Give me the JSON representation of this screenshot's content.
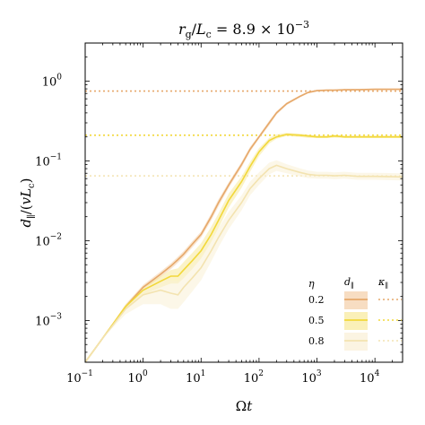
{
  "chart_data": {
    "type": "line",
    "title_parts": {
      "r": "r",
      "g": "g",
      "slash": "/",
      "L": "L",
      "c": "c",
      "eq": " = 8.9 × 10",
      "exp": "−3"
    },
    "xlabel_parts": {
      "omega": "Ω",
      "t": "t"
    },
    "ylabel_parts": {
      "d": "d",
      "par": "∥",
      "open": "/(",
      "v": "v",
      "L": "L",
      "c": "c",
      "close": ")"
    },
    "xscale": "log",
    "yscale": "log",
    "xlim": [
      0.1,
      30000
    ],
    "ylim": [
      0.0003,
      3
    ],
    "x_ticks": [
      {
        "value": 0.1,
        "base": "10",
        "exp": "−1"
      },
      {
        "value": 1,
        "base": "10",
        "exp": "0"
      },
      {
        "value": 10,
        "base": "10",
        "exp": "1"
      },
      {
        "value": 100,
        "base": "10",
        "exp": "2"
      },
      {
        "value": 1000,
        "base": "10",
        "exp": "3"
      },
      {
        "value": 10000,
        "base": "10",
        "exp": "4"
      }
    ],
    "y_ticks": [
      {
        "value": 0.001,
        "base": "10",
        "exp": "−3"
      },
      {
        "value": 0.01,
        "base": "10",
        "exp": "−2"
      },
      {
        "value": 0.1,
        "base": "10",
        "exp": "−1"
      },
      {
        "value": 1,
        "base": "10",
        "exp": "0"
      }
    ],
    "grid": false,
    "legend": {
      "placement": "bottom-right",
      "header_eta": "η",
      "header_d": "d",
      "header_d_sub": "∥",
      "header_kappa": "κ",
      "header_kappa_sub": "∥"
    },
    "series": [
      {
        "eta": "0.2",
        "color": "#e6a86a",
        "band_color": "#f4cfa8",
        "kappa": 0.75,
        "x": [
          0.1,
          0.2,
          0.5,
          1,
          2,
          3,
          4,
          5,
          7,
          10,
          15,
          20,
          30,
          50,
          70,
          100,
          150,
          200,
          300,
          500,
          700,
          1000,
          1500,
          2000,
          3000,
          5000,
          10000,
          30000
        ],
        "y": [
          0.0003,
          0.0006,
          0.0015,
          0.0026,
          0.0038,
          0.0048,
          0.0058,
          0.0068,
          0.009,
          0.012,
          0.02,
          0.03,
          0.05,
          0.09,
          0.14,
          0.2,
          0.3,
          0.4,
          0.52,
          0.64,
          0.72,
          0.76,
          0.77,
          0.77,
          0.78,
          0.78,
          0.79,
          0.79
        ],
        "lo": [
          0.0003,
          0.0006,
          0.0014,
          0.0024,
          0.0035,
          0.0044,
          0.0053,
          0.0062,
          0.0082,
          0.011,
          0.018,
          0.027,
          0.046,
          0.083,
          0.13,
          0.19,
          0.28,
          0.38,
          0.5,
          0.62,
          0.7,
          0.74,
          0.75,
          0.75,
          0.76,
          0.76,
          0.77,
          0.77
        ],
        "hi": [
          0.0003,
          0.0006,
          0.0016,
          0.0028,
          0.0041,
          0.0052,
          0.0063,
          0.0074,
          0.0098,
          0.013,
          0.022,
          0.033,
          0.054,
          0.097,
          0.15,
          0.21,
          0.32,
          0.42,
          0.54,
          0.66,
          0.74,
          0.78,
          0.79,
          0.79,
          0.8,
          0.8,
          0.81,
          0.81
        ]
      },
      {
        "eta": "0.5",
        "color": "#f2d83a",
        "band_color": "#f8ea9a",
        "kappa": 0.21,
        "x": [
          0.1,
          0.2,
          0.5,
          1,
          2,
          3,
          4,
          5,
          7,
          10,
          15,
          20,
          30,
          50,
          70,
          100,
          150,
          200,
          300,
          500,
          700,
          1000,
          1500,
          2000,
          3000,
          5000,
          10000,
          30000
        ],
        "y": [
          0.0003,
          0.0006,
          0.0015,
          0.0024,
          0.0031,
          0.0036,
          0.0036,
          0.0043,
          0.0056,
          0.0075,
          0.012,
          0.018,
          0.032,
          0.055,
          0.085,
          0.13,
          0.18,
          0.2,
          0.215,
          0.21,
          0.205,
          0.2,
          0.2,
          0.205,
          0.2,
          0.2,
          0.2,
          0.2
        ],
        "lo": [
          0.0003,
          0.0006,
          0.0014,
          0.0021,
          0.0026,
          0.0029,
          0.0029,
          0.0034,
          0.0044,
          0.006,
          0.0096,
          0.0145,
          0.026,
          0.046,
          0.073,
          0.115,
          0.165,
          0.19,
          0.205,
          0.2,
          0.195,
          0.193,
          0.193,
          0.196,
          0.193,
          0.193,
          0.193,
          0.193
        ],
        "hi": [
          0.0003,
          0.0006,
          0.0016,
          0.0027,
          0.0036,
          0.0043,
          0.0045,
          0.0054,
          0.007,
          0.0093,
          0.015,
          0.022,
          0.039,
          0.064,
          0.097,
          0.145,
          0.195,
          0.215,
          0.225,
          0.22,
          0.215,
          0.208,
          0.208,
          0.214,
          0.208,
          0.208,
          0.208,
          0.208
        ]
      },
      {
        "eta": "0.8",
        "color": "#f3e3b0",
        "band_color": "#f9f0d6",
        "kappa": 0.065,
        "x": [
          0.1,
          0.2,
          0.5,
          1,
          2,
          3,
          4,
          5,
          7,
          10,
          15,
          20,
          30,
          50,
          70,
          100,
          150,
          200,
          300,
          500,
          700,
          1000,
          1500,
          2000,
          3000,
          5000,
          10000,
          30000
        ],
        "y": [
          0.0003,
          0.0006,
          0.0014,
          0.0021,
          0.0024,
          0.0022,
          0.0021,
          0.0026,
          0.0034,
          0.0046,
          0.0075,
          0.011,
          0.018,
          0.03,
          0.045,
          0.06,
          0.08,
          0.088,
          0.08,
          0.072,
          0.068,
          0.066,
          0.066,
          0.065,
          0.066,
          0.064,
          0.064,
          0.063
        ],
        "lo": [
          0.0003,
          0.0006,
          0.0012,
          0.0016,
          0.0016,
          0.0014,
          0.0014,
          0.0017,
          0.0023,
          0.0032,
          0.0055,
          0.0083,
          0.014,
          0.024,
          0.037,
          0.05,
          0.068,
          0.075,
          0.07,
          0.064,
          0.061,
          0.06,
          0.06,
          0.059,
          0.06,
          0.058,
          0.058,
          0.057
        ],
        "hi": [
          0.0003,
          0.0006,
          0.0016,
          0.0026,
          0.0032,
          0.0032,
          0.0031,
          0.0037,
          0.0048,
          0.0064,
          0.01,
          0.0145,
          0.023,
          0.037,
          0.055,
          0.072,
          0.095,
          0.102,
          0.091,
          0.081,
          0.076,
          0.073,
          0.073,
          0.072,
          0.073,
          0.071,
          0.071,
          0.07
        ]
      }
    ]
  }
}
